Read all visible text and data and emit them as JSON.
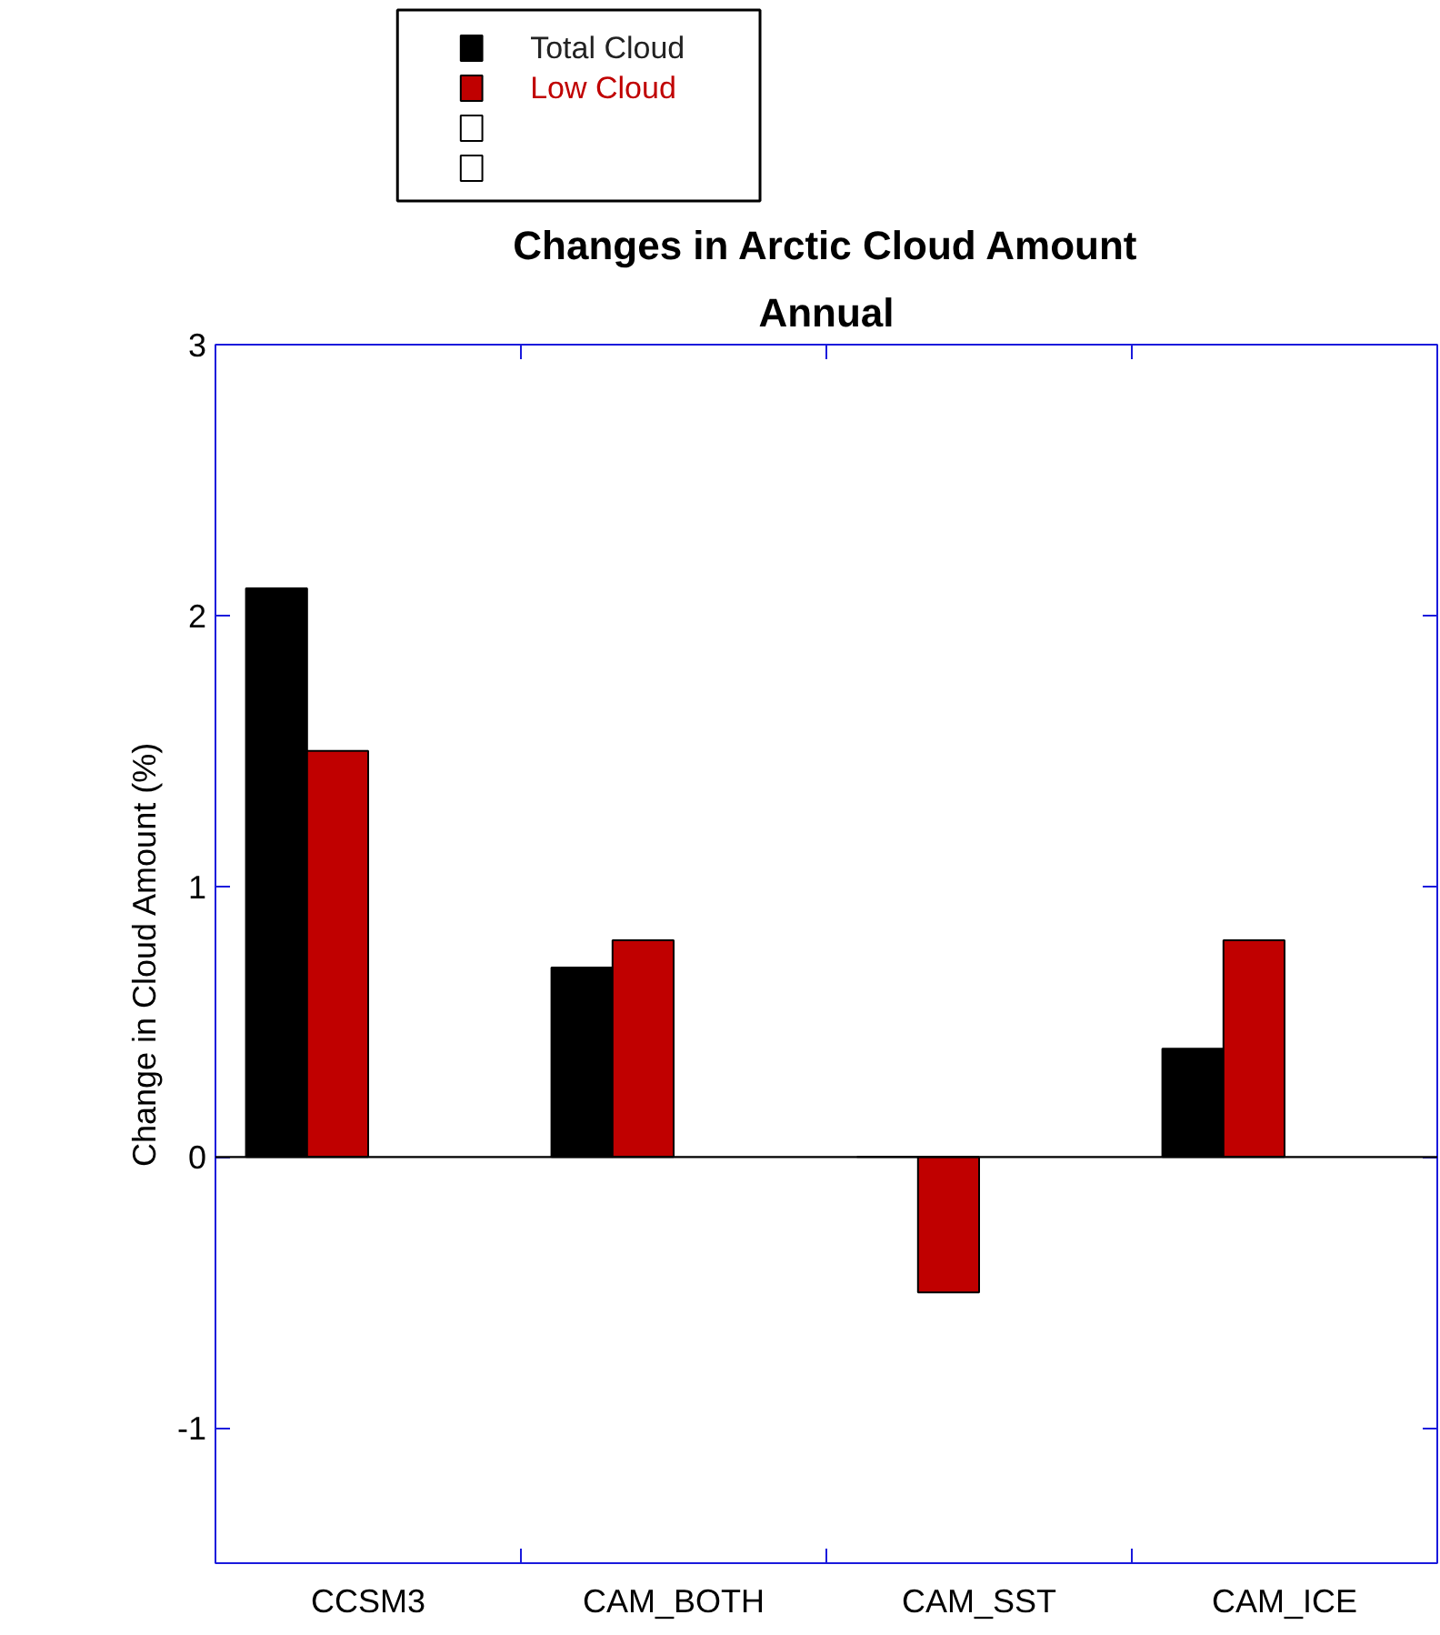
{
  "chart_data": {
    "type": "bar",
    "title": "Changes in Arctic Cloud Amount",
    "subtitle": "Annual",
    "ylabel": "Change in Cloud Amount (%)",
    "categories": [
      "CCSM3",
      "CAM_BOTH",
      "CAM_SST",
      "CAM_ICE"
    ],
    "series": [
      {
        "name": "Total Cloud",
        "color": "#000000",
        "values": [
          2.1,
          0.7,
          0,
          0.4
        ]
      },
      {
        "name": "Low Cloud",
        "color": "#c00000",
        "values": [
          1.5,
          0.8,
          -0.5,
          0.8
        ]
      },
      {
        "color": "#ffffff",
        "values": [
          null,
          null,
          null,
          null
        ]
      },
      {
        "color": "#ffffff",
        "values": [
          null,
          null,
          null,
          null
        ]
      }
    ],
    "ylim": [
      -1.5,
      3
    ],
    "yticks": [
      -1,
      0,
      1,
      2,
      3
    ],
    "ref_lines": [
      {
        "axis": "y",
        "value": 0,
        "color": "#000000"
      }
    ],
    "grid": false,
    "legend": "top left"
  }
}
